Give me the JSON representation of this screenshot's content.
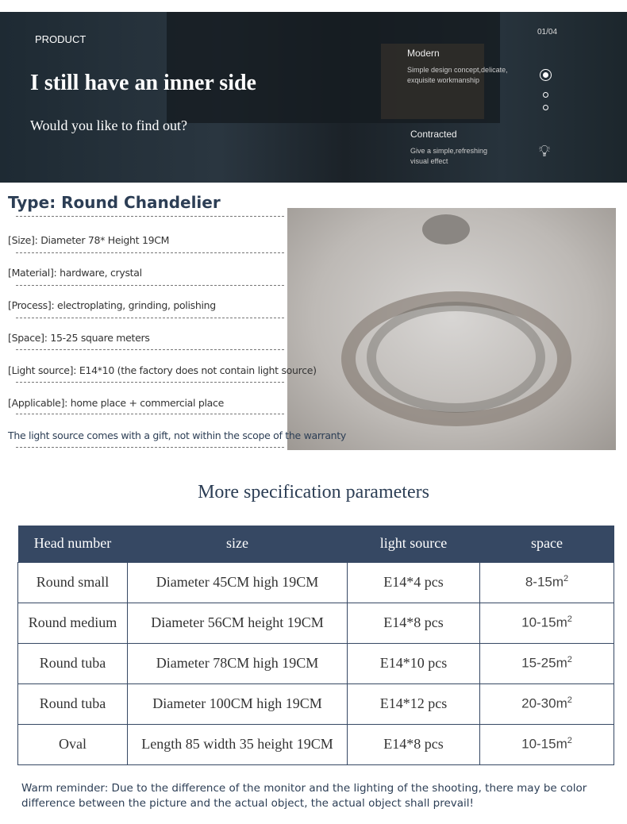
{
  "banner": {
    "label": "PRODUCT",
    "title": "I still have an inner side",
    "subtitle": "Would you like to find out?",
    "page": "01/04",
    "features": [
      {
        "title": "Modern",
        "desc": "Simple design concept,delicate, exquisite workmanship"
      },
      {
        "title": "Contracted",
        "desc": "Give a simple,refreshing visual effect"
      }
    ]
  },
  "product": {
    "type": "Type: Round Chandelier",
    "specs": [
      "[Size]: Diameter 78* Height 19CM",
      "[Material]: hardware, crystal",
      "[Process]: electroplating, grinding, polishing",
      "[Space]: 15-25 square meters",
      "[Light source]: E14*10 (the factory does not contain light source)",
      "[Applicable]: home place + commercial place",
      "The light source comes with a gift, not within the scope of the warranty"
    ]
  },
  "table": {
    "title": "More specification parameters",
    "headers": [
      "Head number",
      "size",
      "light source",
      "space"
    ],
    "rows": [
      [
        "Round small",
        "Diameter 45CM high 19CM",
        "E14*4 pcs",
        "8-15m",
        "2"
      ],
      [
        "Round medium",
        "Diameter 56CM height 19CM",
        "E14*8 pcs",
        "10-15m",
        "2"
      ],
      [
        "Round tuba",
        "Diameter 78CM high 19CM",
        "E14*10 pcs",
        "15-25m",
        "2"
      ],
      [
        "Round tuba",
        "Diameter 100CM high 19CM",
        "E14*12 pcs",
        "20-30m",
        "2"
      ],
      [
        "Oval",
        "Length 85 width 35 height 19CM",
        "E14*8 pcs",
        "10-15m",
        "2"
      ]
    ]
  },
  "reminder": "Warm reminder: Due to the difference of the monitor and the lighting of the shooting, there may be color difference between the picture and the actual object, the actual object shall prevail!"
}
